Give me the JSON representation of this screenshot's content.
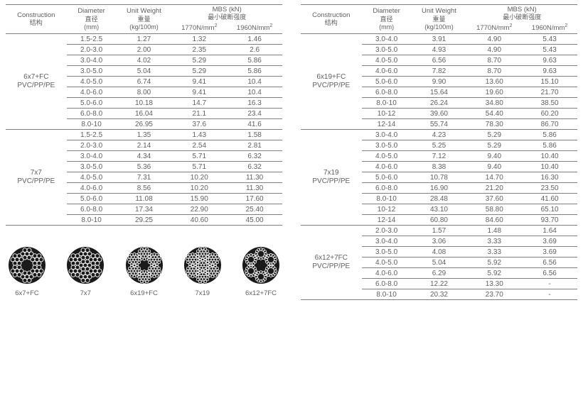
{
  "colors": {
    "text": "#606060",
    "rule": "#808080",
    "bg": "#ffffff",
    "circleFill": "#1a1a1a",
    "circleStroke": "#ffffff"
  },
  "font": {
    "family": "Arial",
    "header_pt": 9.5,
    "body_pt": 10
  },
  "columnWidthsPct": [
    22,
    18,
    20,
    20,
    20
  ],
  "header": {
    "construction": {
      "en": "Construction",
      "zh": "结构"
    },
    "diameter": {
      "en": "Diameter",
      "zh": "直径",
      "unit": "(mm)"
    },
    "unitweight": {
      "en": "Unit Weight",
      "zh": "重量",
      "unit": "(kg/100m)"
    },
    "mbs": {
      "en": "MBS (kN)",
      "zh": "最小破断强度",
      "c1": "1770N/mm",
      "c2": "1960N/mm",
      "sup": "2"
    }
  },
  "groups_left": [
    {
      "label": "6x7+FC\nPVC/PP/PE",
      "rows": [
        [
          "1.5-2.5",
          "1.27",
          "1.32",
          "1.46"
        ],
        [
          "2.0-3.0",
          "2.00",
          "2.35",
          "2.6"
        ],
        [
          "3.0-4.0",
          "4.02",
          "5.29",
          "5.86"
        ],
        [
          "3.0-5.0",
          "5.04",
          "5.29",
          "5.86"
        ],
        [
          "4.0-5.0",
          "6.74",
          "9.41",
          "10.4"
        ],
        [
          "4.0-6.0",
          "8.00",
          "9.41",
          "10.4"
        ],
        [
          "5.0-6.0",
          "10.18",
          "14.7",
          "16.3"
        ],
        [
          "6.0-8.0",
          "16.04",
          "21.1",
          "23.4"
        ],
        [
          "8.0-10",
          "26.95",
          "37.6",
          "41.6"
        ]
      ]
    },
    {
      "label": "7x7\nPVC/PP/PE",
      "rows": [
        [
          "1.5-2.5",
          "1.35",
          "1.43",
          "1.58"
        ],
        [
          "2.0-3.0",
          "2.14",
          "2.54",
          "2.81"
        ],
        [
          "3.0-4.0",
          "4.34",
          "5.71",
          "6.32"
        ],
        [
          "3.0-5.0",
          "5.36",
          "5.71",
          "6.32"
        ],
        [
          "4.0-5.0",
          "7.31",
          "10.20",
          "11.30"
        ],
        [
          "4.0-6.0",
          "8.56",
          "10.20",
          "11.30"
        ],
        [
          "5.0-6.0",
          "11.08",
          "15.90",
          "17.60"
        ],
        [
          "6.0-8.0",
          "17.34",
          "22.90",
          "25.40"
        ],
        [
          "8.0-10",
          "29.25",
          "40.60",
          "45.00"
        ]
      ]
    }
  ],
  "groups_right": [
    {
      "label": "6x19+FC\nPVC/PP/PE",
      "rows": [
        [
          "3.0-4.0",
          "3.91",
          "4.90",
          "5.43"
        ],
        [
          "3.0-5.0",
          "4.93",
          "4.90",
          "5.43"
        ],
        [
          "4.0-5.0",
          "6.56",
          "8.70",
          "9.63"
        ],
        [
          "4.0-6.0",
          "7.82",
          "8.70",
          "9.63"
        ],
        [
          "5.0-6.0",
          "9.90",
          "13.60",
          "15.10"
        ],
        [
          "6.0-8.0",
          "15.64",
          "19.60",
          "21.70"
        ],
        [
          "8.0-10",
          "26.24",
          "34.80",
          "38.50"
        ],
        [
          "10-12",
          "39.60",
          "54.40",
          "60.20"
        ],
        [
          "12-14",
          "55.74",
          "78.30",
          "86.70"
        ]
      ]
    },
    {
      "label": "7x19\nPVC/PP/PE",
      "rows": [
        [
          "3.0-4.0",
          "4.23",
          "5.29",
          "5.86"
        ],
        [
          "3.0-5.0",
          "5.25",
          "5.29",
          "5.86"
        ],
        [
          "4.0-5.0",
          "7.12",
          "9.40",
          "10.40"
        ],
        [
          "4.0-6.0",
          "8.38",
          "9.40",
          "10.40"
        ],
        [
          "5.0-6.0",
          "10.78",
          "14.70",
          "16.30"
        ],
        [
          "6.0-8.0",
          "16.90",
          "21.20",
          "23.50"
        ],
        [
          "8.0-10",
          "28.48",
          "37.60",
          "41.60"
        ],
        [
          "10-12",
          "43.10",
          "58.80",
          "65.10"
        ],
        [
          "12-14",
          "60.80",
          "84.60",
          "93.70"
        ]
      ]
    },
    {
      "label": "6x12+7FC\nPVC/PP/PE",
      "rows": [
        [
          "2.0-3.0",
          "1.57",
          "1.48",
          "1.64"
        ],
        [
          "3.0-4.0",
          "3.06",
          "3.33",
          "3.69"
        ],
        [
          "3.0-5.0",
          "4.08",
          "3.33",
          "3.69"
        ],
        [
          "4.0-5.0",
          "5.04",
          "5.92",
          "6.56"
        ],
        [
          "4.0-6.0",
          "6.29",
          "5.92",
          "6.56"
        ],
        [
          "6.0-8.0",
          "12.22",
          "13.30",
          "-"
        ],
        [
          "8.0-10",
          "20.32",
          "23.70",
          "-"
        ]
      ]
    }
  ],
  "figures": [
    {
      "name": "6x7+FC",
      "outerStrands": 6,
      "wiresPerStrand": 7,
      "centerWires": 0
    },
    {
      "name": "7x7",
      "outerStrands": 6,
      "wiresPerStrand": 7,
      "centerWires": 7
    },
    {
      "name": "6x19+FC",
      "outerStrands": 6,
      "wiresPerStrand": 19,
      "centerWires": 0
    },
    {
      "name": "7x19",
      "outerStrands": 6,
      "wiresPerStrand": 19,
      "centerWires": 19
    },
    {
      "name": "6x12+7FC",
      "outerStrands": 6,
      "wiresPerStrand": 12,
      "centerWires": 0
    }
  ]
}
